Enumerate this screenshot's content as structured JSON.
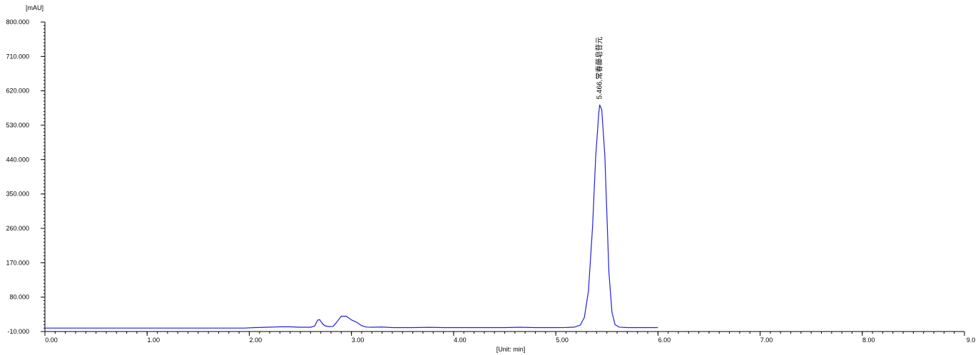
{
  "chart_data": {
    "type": "line",
    "title": "",
    "ylabel": "[mAU]",
    "xlabel": "[Unit: min]",
    "xlim": [
      0,
      9
    ],
    "ylim": [
      -10,
      800
    ],
    "grid": false,
    "x_ticks": [
      0,
      1,
      2,
      3,
      4,
      5,
      6,
      7,
      8,
      9
    ],
    "x_tick_labels": [
      "0.00",
      "1.00",
      "2.00",
      "3.00",
      "4.00",
      "5.00",
      "6.00",
      "7.00",
      "8.00",
      "9.0"
    ],
    "y_ticks": [
      -10,
      80,
      170,
      260,
      350,
      440,
      530,
      620,
      710,
      800
    ],
    "y_tick_labels": [
      "-10.000",
      "80.000",
      "170.000",
      "260.000",
      "350.000",
      "440.000",
      "530.000",
      "620.000",
      "710.000",
      "800.000"
    ],
    "line_color": "#2020e0",
    "series": [
      {
        "points": [
          [
            0,
            -1
          ],
          [
            1.5,
            -1
          ],
          [
            1.95,
            -1
          ],
          [
            2.05,
            0.2
          ],
          [
            2.2,
            1.4
          ],
          [
            2.3,
            2.3
          ],
          [
            2.4,
            2.2
          ],
          [
            2.5,
            1.2
          ],
          [
            2.6,
            1.2
          ],
          [
            2.64,
            4.4
          ],
          [
            2.67,
            19.9
          ],
          [
            2.69,
            21
          ],
          [
            2.71,
            12.3
          ],
          [
            2.74,
            4.9
          ],
          [
            2.78,
            3
          ],
          [
            2.82,
            3.5
          ],
          [
            2.86,
            15.7
          ],
          [
            2.9,
            30
          ],
          [
            2.95,
            30
          ],
          [
            3.0,
            20.3
          ],
          [
            3.05,
            14.3
          ],
          [
            3.1,
            5.3
          ],
          [
            3.15,
            1.6
          ],
          [
            3.2,
            1.1
          ],
          [
            3.3,
            2
          ],
          [
            3.4,
            0.3
          ],
          [
            3.6,
            0.3
          ],
          [
            3.76,
            0.9
          ],
          [
            3.9,
            0.3
          ],
          [
            4.5,
            0.2
          ],
          [
            4.65,
            1.1
          ],
          [
            4.8,
            0.2
          ],
          [
            4.9,
            0.2
          ],
          [
            5.0,
            0.2
          ],
          [
            5.1,
            0.4
          ],
          [
            5.18,
            1.4
          ],
          [
            5.24,
            7
          ],
          [
            5.28,
            27
          ],
          [
            5.32,
            96
          ],
          [
            5.36,
            265
          ],
          [
            5.39,
            445
          ],
          [
            5.42,
            560
          ],
          [
            5.43,
            583
          ],
          [
            5.45,
            570
          ],
          [
            5.48,
            450
          ],
          [
            5.5,
            300
          ],
          [
            5.52,
            145
          ],
          [
            5.55,
            40
          ],
          [
            5.58,
            8
          ],
          [
            5.62,
            1.6
          ],
          [
            5.7,
            0.3
          ],
          [
            5.8,
            0.2
          ],
          [
            6.0,
            0.2
          ]
        ]
      }
    ],
    "annotations": [
      {
        "x": 5.43,
        "y": 583,
        "text": "5.466,常春藤皂苷元"
      }
    ]
  }
}
